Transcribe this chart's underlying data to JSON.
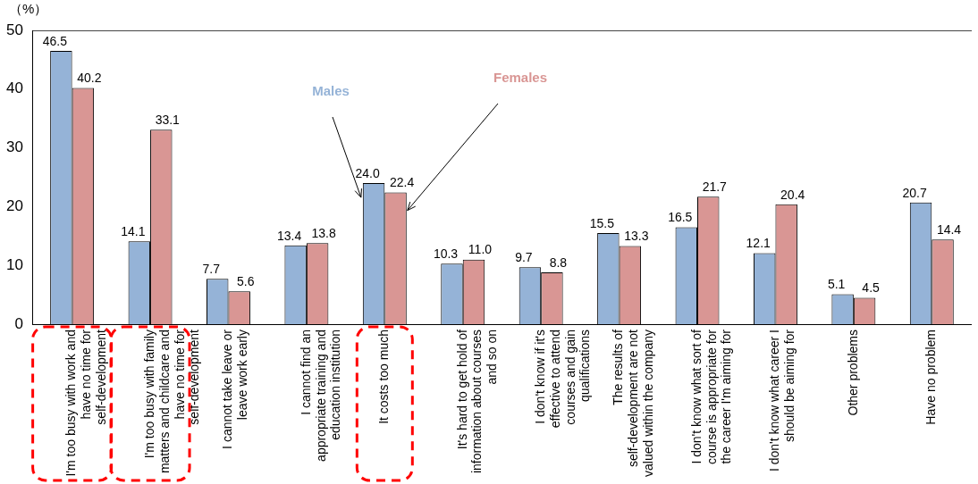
{
  "chart_data": {
    "type": "bar",
    "ylabel": "（%）",
    "categories": [
      "I'm too busy with work and have no time for self-development",
      "I'm too busy with family matters and childcare and have no time for self-development",
      "I cannot take leave or leave work early",
      "I cannot find an appropriate training and education institution",
      "It costs too much",
      "It's hard to get hold of information about courses and so on",
      "I don't know if it's effective to attend courses and gain qualifications",
      "The results of self-development are not valued within the company",
      "I don't know what sort of course is appropriate for the career I'm aiming for",
      "I don't know what career I should be aiming for",
      "Other problems",
      "Have no problem"
    ],
    "series": [
      {
        "name": "Males",
        "color": "#95b3d7",
        "values": [
          46.5,
          14.1,
          7.7,
          13.4,
          24.0,
          10.3,
          9.7,
          15.5,
          16.5,
          12.1,
          5.1,
          20.7
        ],
        "value_labels": [
          "46.5",
          "14.1",
          "7.7",
          "13.4",
          "24.0",
          "10.3",
          "9.7",
          "15.5",
          "16.5",
          "12.1",
          "5.1",
          "20.7"
        ]
      },
      {
        "name": "Females",
        "color": "#d99694",
        "values": [
          40.2,
          33.1,
          5.6,
          13.8,
          22.4,
          11.0,
          8.8,
          13.3,
          21.7,
          20.4,
          4.5,
          14.4
        ],
        "value_labels": [
          "40.2",
          "33.1",
          "5.6",
          "13.8",
          "22.4",
          "11.0",
          "8.8",
          "13.3",
          "21.7",
          "20.4",
          "4.5",
          "14.4"
        ]
      }
    ],
    "ylim": [
      0,
      50
    ],
    "yticks": [
      0,
      10,
      20,
      30,
      40,
      50
    ],
    "grid": false,
    "legend": false
  }
}
